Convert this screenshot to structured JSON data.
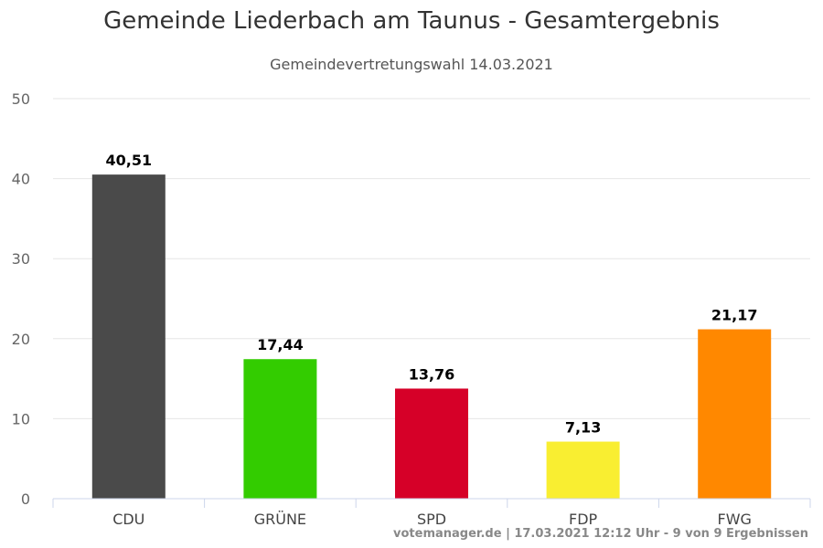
{
  "chart_data": {
    "type": "bar",
    "title": "Gemeinde Liederbach am Taunus - Gesamtergebnis",
    "subtitle": "Gemeindevertretungswahl 14.03.2021",
    "categories": [
      "CDU",
      "GRÜNE",
      "SPD",
      "FDP",
      "FWG"
    ],
    "values": [
      40.51,
      17.44,
      13.76,
      7.13,
      21.17
    ],
    "value_labels": [
      "40,51",
      "17,44",
      "13,76",
      "7,13",
      "21,17"
    ],
    "colors": [
      "#4a4a4a",
      "#33cc00",
      "#d60028",
      "#f9ee31",
      "#ff8800"
    ],
    "ylim": [
      0,
      50
    ],
    "yticks": [
      0,
      10,
      20,
      30,
      40,
      50
    ],
    "grid": true,
    "legend": "none"
  },
  "credits": "votemanager.de | 17.03.2021 12:12 Uhr - 9 von 9 Ergebnissen"
}
